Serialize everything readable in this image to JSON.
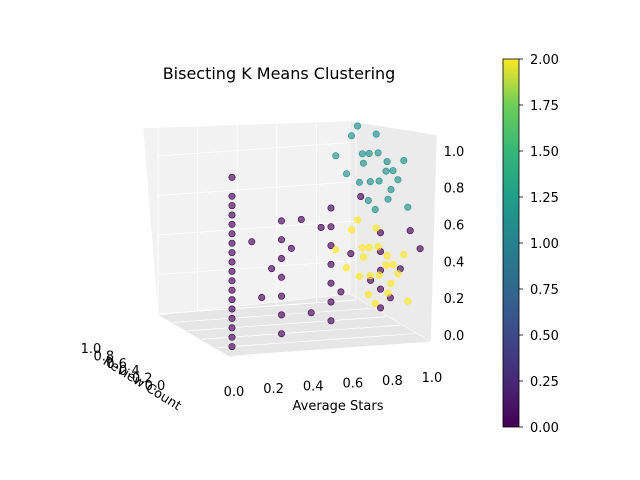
{
  "chart_data": {
    "type": "scatter",
    "projection": "3d",
    "title": "Bisecting K Means Clustering",
    "xlabel": "Average Stars",
    "ylabel": "Review Count",
    "zlabel": "",
    "xlim": [
      0,
      1
    ],
    "ylim": [
      0,
      1
    ],
    "zlim": [
      0,
      1
    ],
    "x_ticks": [
      "0.0",
      "0.2",
      "0.4",
      "0.6",
      "0.8",
      "1.0"
    ],
    "y_ticks": [
      "0.0",
      "0.2",
      "0.4",
      "0.6",
      "0.8",
      "1.0"
    ],
    "z_ticks": [
      "0.0",
      "0.2",
      "0.4",
      "0.6",
      "0.8",
      "1.0"
    ],
    "grid": true,
    "colormap": "viridis",
    "colorbar": {
      "min": 0,
      "max": 2,
      "ticks": [
        "0.00",
        "0.25",
        "0.50",
        "0.75",
        "1.00",
        "1.25",
        "1.50",
        "1.75",
        "2.00"
      ]
    },
    "clusters": [
      {
        "label": 0,
        "color": "#440154",
        "description_points": "low average stars, review count columns at 0.0–0.6, wide z range"
      },
      {
        "label": 1,
        "color": "#21918c",
        "description_points": "higher average stars, upper z range"
      },
      {
        "label": 2,
        "color": "#fde725",
        "description_points": "higher average stars, lower-middle z range"
      }
    ],
    "series": [
      {
        "cluster": 0,
        "points_xyz": [
          [
            0.0,
            0.0,
            0.05
          ],
          [
            0.0,
            0.0,
            0.15
          ],
          [
            0.0,
            0.0,
            0.25
          ],
          [
            0.0,
            0.0,
            0.35
          ],
          [
            0.0,
            0.0,
            0.45
          ],
          [
            0.0,
            0.0,
            0.55
          ],
          [
            0.0,
            0.0,
            0.65
          ],
          [
            0.0,
            0.0,
            0.75
          ],
          [
            0.0,
            0.0,
            0.85
          ],
          [
            0.0,
            0.0,
            0.95
          ],
          [
            0.0,
            0.0,
            0.1
          ],
          [
            0.0,
            0.0,
            0.2
          ],
          [
            0.0,
            0.0,
            0.3
          ],
          [
            0.0,
            0.0,
            0.4
          ],
          [
            0.0,
            0.0,
            0.5
          ],
          [
            0.0,
            0.0,
            0.6
          ],
          [
            0.0,
            0.0,
            0.7
          ],
          [
            0.0,
            0.0,
            0.8
          ],
          [
            0.25,
            0.0,
            0.1
          ],
          [
            0.25,
            0.0,
            0.3
          ],
          [
            0.25,
            0.0,
            0.5
          ],
          [
            0.25,
            0.0,
            0.7
          ],
          [
            0.25,
            0.0,
            0.2
          ],
          [
            0.25,
            0.0,
            0.4
          ],
          [
            0.25,
            0.0,
            0.6
          ],
          [
            0.5,
            0.0,
            0.15
          ],
          [
            0.5,
            0.0,
            0.35
          ],
          [
            0.5,
            0.0,
            0.55
          ],
          [
            0.5,
            0.0,
            0.75
          ],
          [
            0.5,
            0.0,
            0.25
          ],
          [
            0.5,
            0.0,
            0.45
          ],
          [
            0.5,
            0.0,
            0.65
          ],
          [
            0.75,
            0.0,
            0.2
          ],
          [
            0.75,
            0.0,
            0.4
          ],
          [
            0.75,
            0.0,
            0.6
          ],
          [
            0.75,
            0.0,
            0.3
          ],
          [
            0.75,
            0.0,
            0.5
          ],
          [
            0.1,
            0.0,
            0.6
          ],
          [
            0.15,
            0.0,
            0.3
          ],
          [
            0.35,
            0.0,
            0.7
          ],
          [
            0.4,
            0.0,
            0.2
          ],
          [
            0.6,
            0.0,
            0.5
          ],
          [
            0.65,
            0.0,
            0.8
          ],
          [
            0.85,
            0.0,
            0.4
          ],
          [
            0.9,
            0.0,
            0.6
          ],
          [
            0.2,
            0.0,
            0.45
          ],
          [
            0.3,
            0.0,
            0.55
          ],
          [
            0.45,
            0.0,
            0.65
          ],
          [
            0.55,
            0.0,
            0.3
          ],
          [
            0.7,
            0.0,
            0.35
          ],
          [
            0.8,
            0.0,
            0.25
          ],
          [
            0.95,
            0.0,
            0.5
          ]
        ]
      },
      {
        "cluster": 1,
        "points_xyz": [
          [
            0.95,
            0.3,
            0.8
          ],
          [
            0.98,
            0.3,
            0.9
          ],
          [
            0.9,
            0.3,
            0.7
          ],
          [
            0.85,
            0.3,
            0.95
          ],
          [
            0.97,
            0.5,
            0.85
          ],
          [
            0.93,
            0.5,
            0.75
          ],
          [
            1.0,
            0.5,
            0.8
          ],
          [
            0.88,
            0.5,
            0.9
          ],
          [
            0.96,
            0.7,
            0.7
          ],
          [
            0.99,
            0.7,
            0.95
          ],
          [
            0.92,
            0.7,
            0.85
          ],
          [
            1.0,
            0.9,
            0.75
          ],
          [
            0.94,
            0.9,
            0.9
          ],
          [
            0.98,
            0.9,
            0.65
          ],
          [
            0.86,
            0.9,
            0.8
          ],
          [
            1.0,
            0.3,
            0.65
          ],
          [
            0.91,
            0.5,
            0.6
          ],
          [
            0.95,
            0.7,
            0.6
          ],
          [
            0.89,
            0.3,
            0.85
          ],
          [
            0.97,
            0.9,
            0.95
          ],
          [
            0.84,
            0.7,
            0.75
          ],
          [
            0.99,
            0.5,
            0.7
          ]
        ]
      },
      {
        "cluster": 2,
        "points_xyz": [
          [
            0.95,
            0.3,
            0.3
          ],
          [
            0.98,
            0.3,
            0.4
          ],
          [
            0.9,
            0.3,
            0.2
          ],
          [
            0.85,
            0.3,
            0.45
          ],
          [
            0.97,
            0.5,
            0.35
          ],
          [
            0.93,
            0.5,
            0.25
          ],
          [
            1.0,
            0.5,
            0.3
          ],
          [
            0.88,
            0.5,
            0.4
          ],
          [
            0.96,
            0.7,
            0.2
          ],
          [
            0.99,
            0.7,
            0.45
          ],
          [
            0.92,
            0.7,
            0.35
          ],
          [
            1.0,
            0.9,
            0.25
          ],
          [
            0.94,
            0.9,
            0.4
          ],
          [
            0.98,
            0.9,
            0.15
          ],
          [
            0.86,
            0.9,
            0.3
          ],
          [
            1.0,
            0.3,
            0.15
          ],
          [
            0.91,
            0.5,
            0.1
          ],
          [
            0.95,
            0.7,
            0.1
          ],
          [
            0.89,
            0.3,
            0.35
          ],
          [
            0.97,
            0.9,
            0.45
          ],
          [
            0.84,
            0.7,
            0.25
          ],
          [
            0.99,
            0.5,
            0.2
          ]
        ]
      }
    ]
  },
  "decor": {
    "cluster_colors": [
      "#440154",
      "#21918c",
      "#fde725"
    ]
  }
}
